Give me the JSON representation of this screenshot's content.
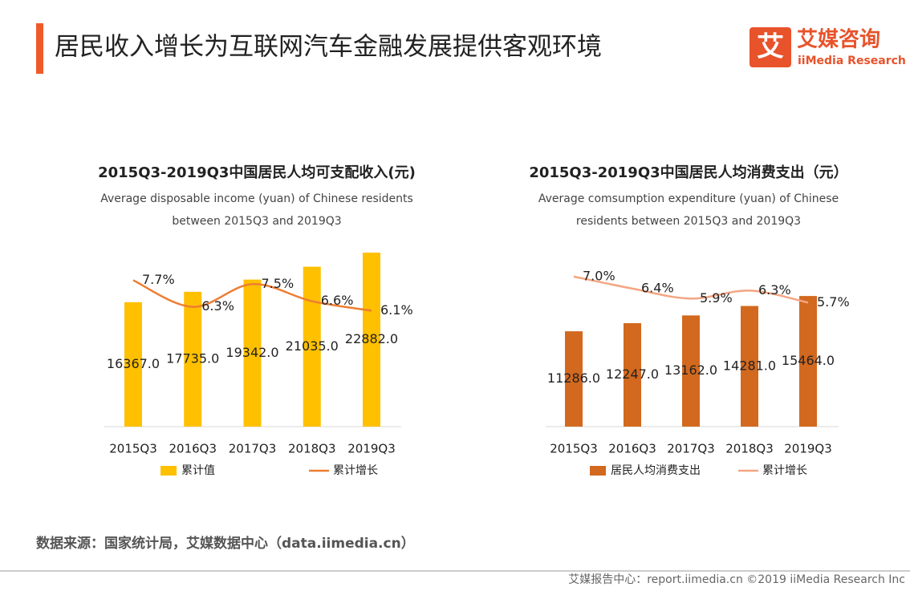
{
  "header": {
    "title": "居民收入增长为互联网汽车金融发展提供客观环境",
    "logo_icon": "艾",
    "logo_name": "艾媒咨询",
    "logo_sub": "iiMedia Research"
  },
  "chart_data": [
    {
      "type": "bar_line",
      "title": "2015Q3-2019Q3中国居民人均可支配收入(元)",
      "subtitle": [
        "Average disposable income (yuan) of Chinese residents",
        "between 2015Q3 and 2019Q3"
      ],
      "categories": [
        "2015Q3",
        "2016Q3",
        "2017Q3",
        "2018Q3",
        "2019Q3"
      ],
      "ylim": [
        0,
        25000
      ],
      "y2lim": [
        0,
        10
      ],
      "series": [
        {
          "name": "累计值",
          "type": "bar",
          "color": "#FFC000",
          "values": [
            16367,
            17735,
            19342,
            21035,
            22882
          ],
          "value_labels": [
            "16367.0",
            "17735.0",
            "19342.0",
            "21035.0",
            "22882.0"
          ]
        },
        {
          "name": "累计增长",
          "type": "line",
          "axis": "y2",
          "color": "#ED7D31",
          "values": [
            7.7,
            6.3,
            7.5,
            6.6,
            6.1
          ],
          "value_labels": [
            "7.7%",
            "6.3%",
            "7.5%",
            "6.6%",
            "6.1%"
          ]
        }
      ]
    },
    {
      "type": "bar_line",
      "title": "2015Q3-2019Q3中国居民人均消费支出（元）",
      "subtitle": [
        "Average comsumption expenditure (yuan) of Chinese",
        "residents between 2015Q3 and 2019Q3"
      ],
      "categories": [
        "2015Q3",
        "2016Q3",
        "2017Q3",
        "2018Q3",
        "2019Q3"
      ],
      "ylim": [
        0,
        22500
      ],
      "y2lim": [
        -0.5,
        9
      ],
      "series": [
        {
          "name": "居民人均消费支出",
          "type": "bar",
          "color": "#D2691E",
          "values": [
            11286,
            12247,
            13162,
            14281,
            15464
          ],
          "value_labels": [
            "11286.0",
            "12247.0",
            "13162.0",
            "14281.0",
            "15464.0"
          ]
        },
        {
          "name": "累计增长",
          "type": "line",
          "axis": "y2",
          "color": "#F4A582",
          "values": [
            7.0,
            6.4,
            5.9,
            6.3,
            5.7
          ],
          "value_labels": [
            "7.0%",
            "6.4%",
            "5.9%",
            "6.3%",
            "5.7%"
          ]
        }
      ]
    }
  ],
  "source": "数据来源：国家统计局，艾媒数据中心（data.iimedia.cn）",
  "footer": "艾媒报告中心：report.iimedia.cn  ©2019  iiMedia Research  Inc"
}
